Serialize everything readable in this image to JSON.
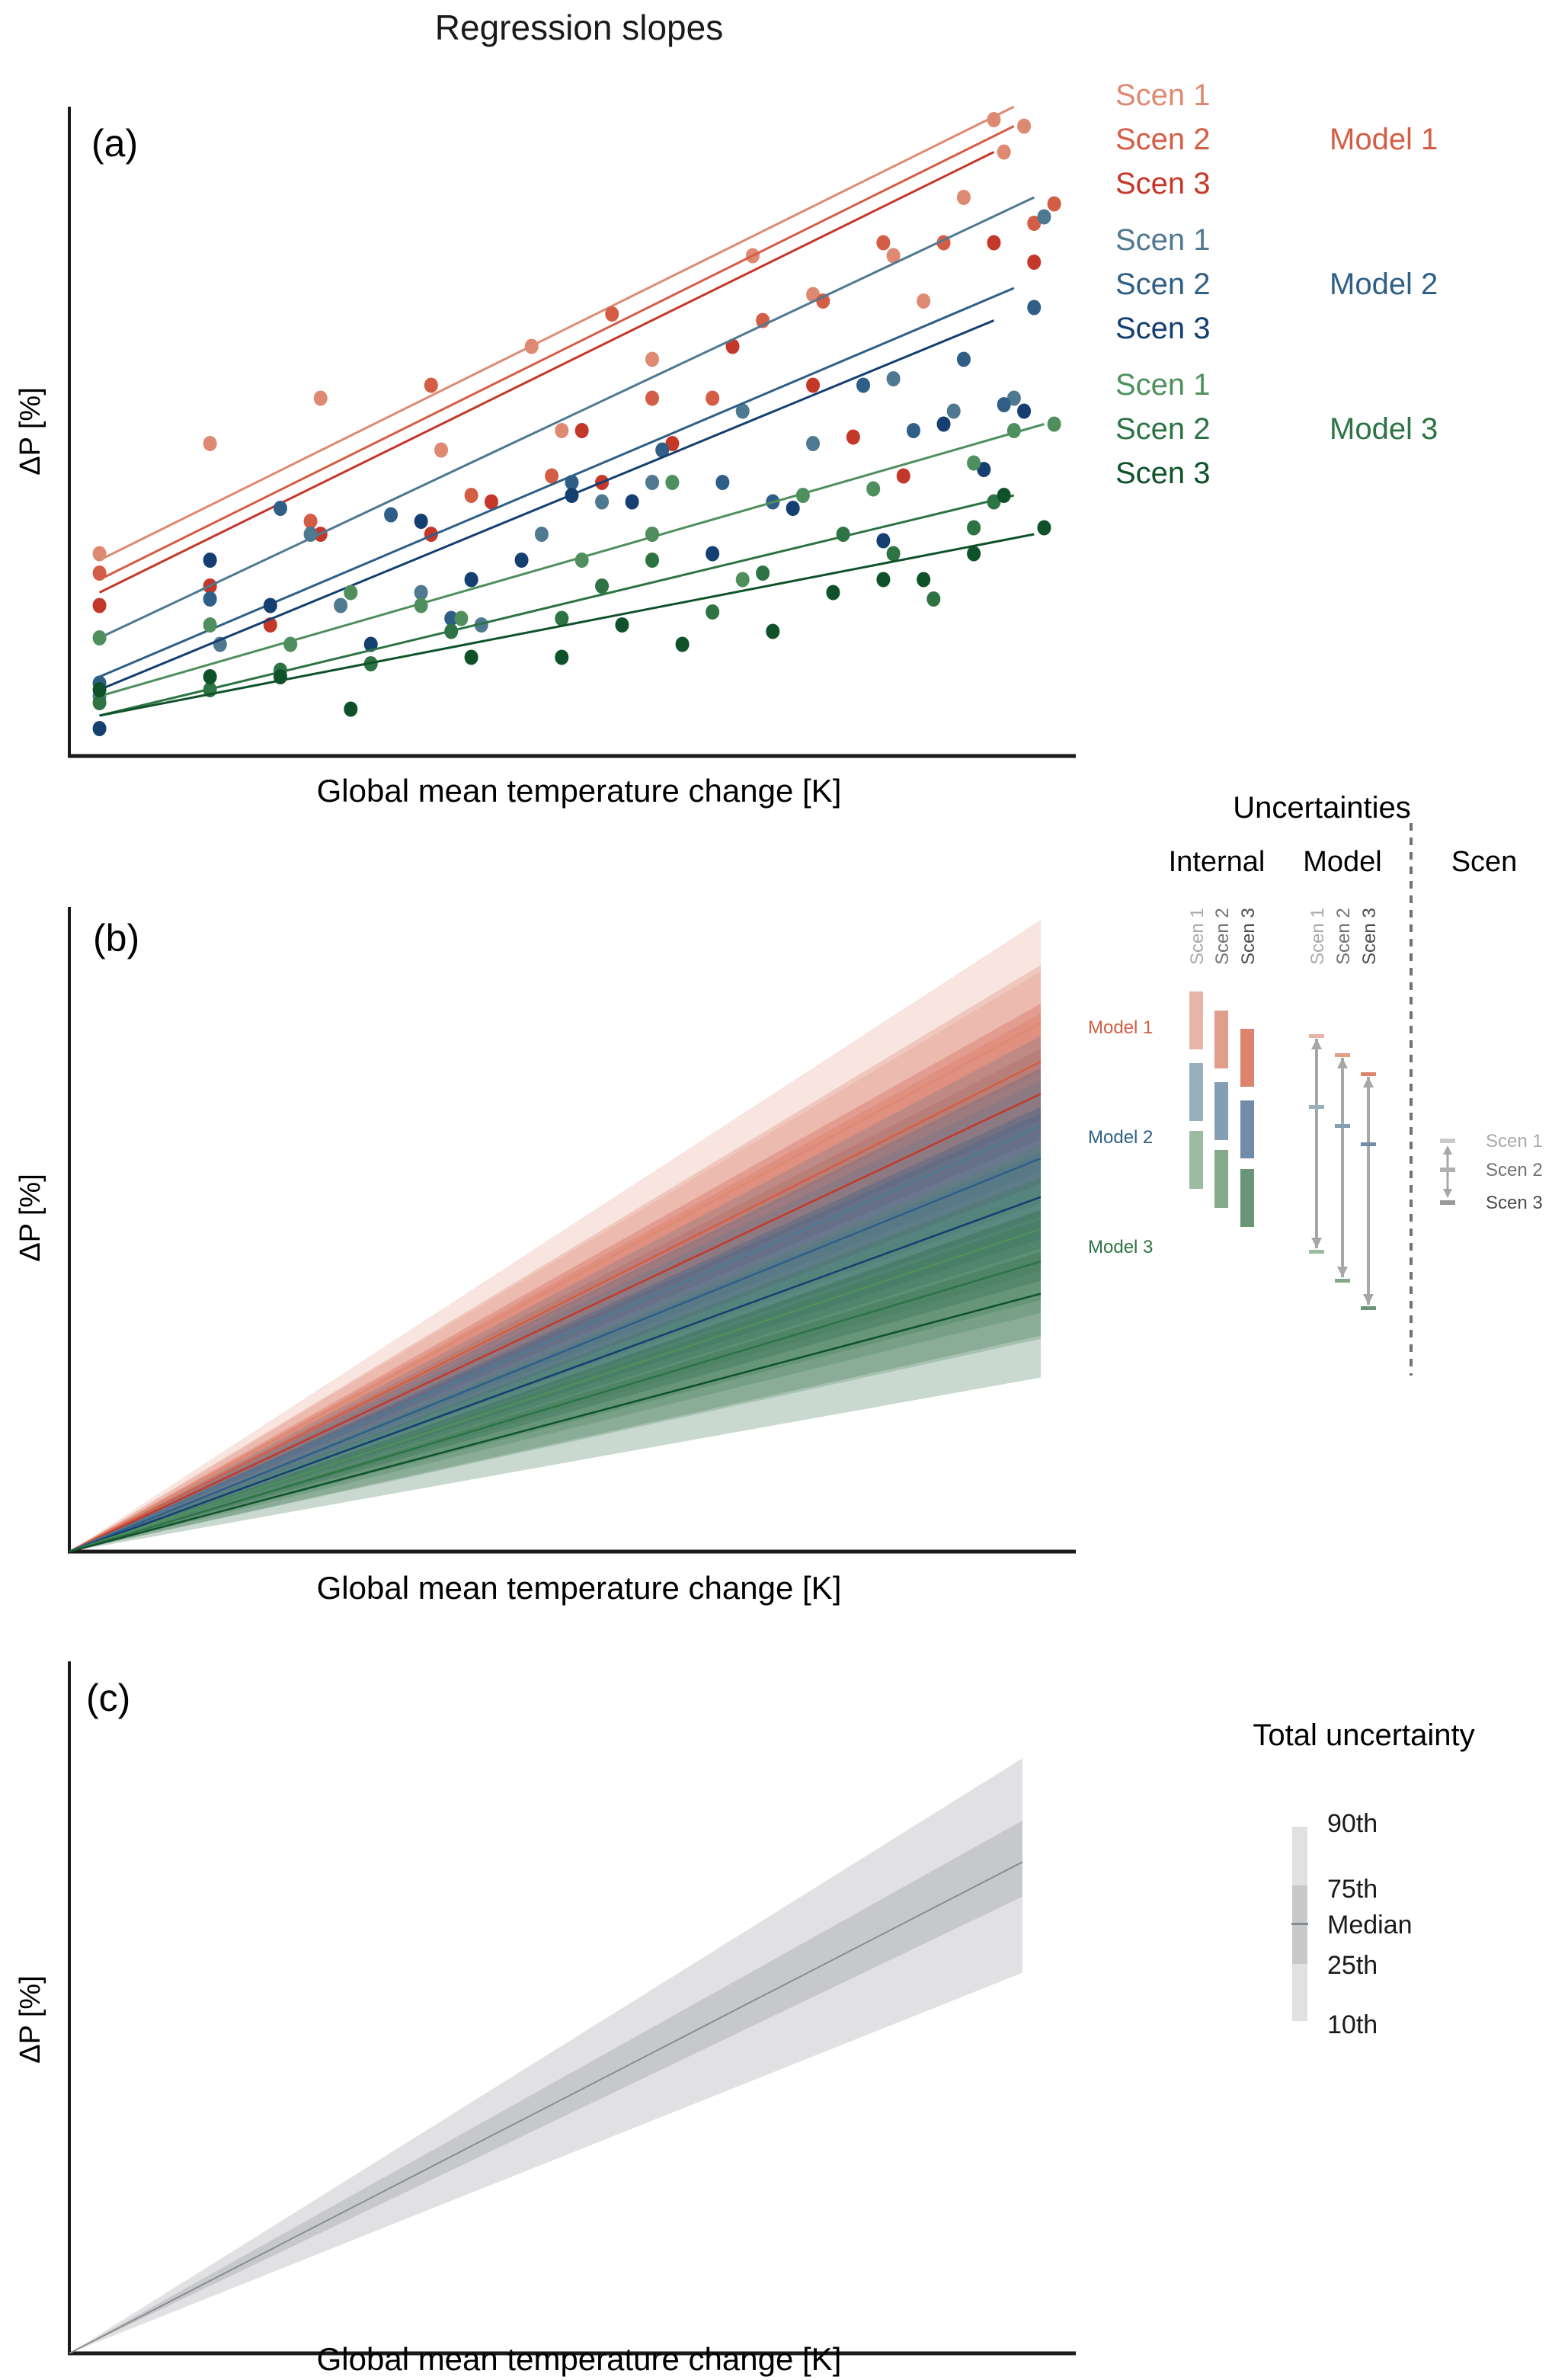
{
  "figure_title": "Regression slopes",
  "colors": {
    "m1s1": "#de8a73",
    "m1s2": "#d45e45",
    "m1s3": "#c4382a",
    "m2s1": "#4f7891",
    "m2s2": "#2f5f86",
    "m2s3": "#143f70",
    "m3s1": "#4f8f5e",
    "m3s2": "#2d7344",
    "m3s3": "#0f522a",
    "axis": "#1a1a1a",
    "grey_arrow": "#a6a7a9",
    "total_outer": "#e1e1e3",
    "total_inner": "#c7c8ca",
    "total_median": "#8a8d8f"
  },
  "chart_data": [
    {
      "id": "a",
      "type": "scatter",
      "panel_label": "(a)",
      "title": "Regression slopes",
      "xlabel": "Global  mean temperature change [K]",
      "ylabel": "ΔP [%]",
      "xlim": [
        0,
        1
      ],
      "ylim": [
        0,
        1
      ],
      "units_note": "axes have no tick labels; values are normalized 0-1",
      "grid": false,
      "legend": {
        "placement": "right",
        "groups": [
          {
            "model": "Model 1",
            "scenarios": [
              "Scen 1",
              "Scen 2",
              "Scen 3"
            ],
            "colors": [
              "m1s1",
              "m1s2",
              "m1s3"
            ],
            "model_color": "m1s2"
          },
          {
            "model": "Model 2",
            "scenarios": [
              "Scen 1",
              "Scen 2",
              "Scen 3"
            ],
            "colors": [
              "m2s1",
              "m2s2",
              "m2s3"
            ],
            "model_color": "m2s2"
          },
          {
            "model": "Model 3",
            "scenarios": [
              "Scen 1",
              "Scen 2",
              "Scen 3"
            ],
            "colors": [
              "m3s1",
              "m3s2",
              "m3s3"
            ],
            "model_color": "m3s2"
          }
        ]
      },
      "series": [
        {
          "name": "Model 1 Scen 1",
          "color": "m1s1",
          "line": [
            [
              0.03,
              0.3
            ],
            [
              0.94,
              1.0
            ]
          ],
          "points": [
            [
              0.03,
              0.31
            ],
            [
              0.14,
              0.48
            ],
            [
              0.25,
              0.55
            ],
            [
              0.37,
              0.47
            ],
            [
              0.46,
              0.63
            ],
            [
              0.49,
              0.5
            ],
            [
              0.58,
              0.61
            ],
            [
              0.68,
              0.77
            ],
            [
              0.74,
              0.71
            ],
            [
              0.82,
              0.77
            ],
            [
              0.85,
              0.7
            ],
            [
              0.93,
              0.93
            ],
            [
              0.95,
              0.97
            ],
            [
              0.92,
              0.98
            ],
            [
              0.89,
              0.86
            ]
          ]
        },
        {
          "name": "Model 1 Scen 2",
          "color": "m1s2",
          "line": [
            [
              0.03,
              0.27
            ],
            [
              0.94,
              0.97
            ]
          ],
          "points": [
            [
              0.03,
              0.28
            ],
            [
              0.14,
              0.26
            ],
            [
              0.24,
              0.36
            ],
            [
              0.36,
              0.57
            ],
            [
              0.4,
              0.4
            ],
            [
              0.48,
              0.43
            ],
            [
              0.58,
              0.55
            ],
            [
              0.64,
              0.55
            ],
            [
              0.69,
              0.67
            ],
            [
              0.75,
              0.7
            ],
            [
              0.81,
              0.79
            ],
            [
              0.87,
              0.79
            ],
            [
              0.96,
              0.82
            ],
            [
              0.98,
              0.85
            ],
            [
              0.54,
              0.68
            ]
          ]
        },
        {
          "name": "Model 1 Scen 3",
          "color": "m1s3",
          "line": [
            [
              0.03,
              0.25
            ],
            [
              0.92,
              0.93
            ]
          ],
          "points": [
            [
              0.03,
              0.23
            ],
            [
              0.14,
              0.26
            ],
            [
              0.2,
              0.2
            ],
            [
              0.25,
              0.34
            ],
            [
              0.36,
              0.34
            ],
            [
              0.42,
              0.39
            ],
            [
              0.51,
              0.5
            ],
            [
              0.53,
              0.42
            ],
            [
              0.6,
              0.48
            ],
            [
              0.66,
              0.63
            ],
            [
              0.74,
              0.57
            ],
            [
              0.78,
              0.49
            ],
            [
              0.83,
              0.43
            ],
            [
              0.92,
              0.79
            ],
            [
              0.96,
              0.76
            ]
          ]
        },
        {
          "name": "Model 2 Scen 1",
          "color": "m2s1",
          "line": [
            [
              0.03,
              0.18
            ],
            [
              0.96,
              0.86
            ]
          ],
          "points": [
            [
              0.03,
              0.09
            ],
            [
              0.15,
              0.17
            ],
            [
              0.24,
              0.34
            ],
            [
              0.27,
              0.23
            ],
            [
              0.35,
              0.25
            ],
            [
              0.41,
              0.2
            ],
            [
              0.47,
              0.34
            ],
            [
              0.53,
              0.39
            ],
            [
              0.58,
              0.42
            ],
            [
              0.67,
              0.53
            ],
            [
              0.74,
              0.48
            ],
            [
              0.82,
              0.58
            ],
            [
              0.88,
              0.53
            ],
            [
              0.94,
              0.55
            ],
            [
              0.97,
              0.83
            ]
          ]
        },
        {
          "name": "Model 2 Scen 2",
          "color": "m2s2",
          "line": [
            [
              0.03,
              0.12
            ],
            [
              0.94,
              0.72
            ]
          ],
          "points": [
            [
              0.03,
              0.11
            ],
            [
              0.14,
              0.24
            ],
            [
              0.21,
              0.38
            ],
            [
              0.32,
              0.37
            ],
            [
              0.38,
              0.21
            ],
            [
              0.5,
              0.42
            ],
            [
              0.59,
              0.47
            ],
            [
              0.65,
              0.42
            ],
            [
              0.7,
              0.39
            ],
            [
              0.79,
              0.57
            ],
            [
              0.84,
              0.5
            ],
            [
              0.89,
              0.61
            ],
            [
              0.93,
              0.54
            ],
            [
              0.96,
              0.69
            ],
            [
              0.58,
              0.34
            ]
          ]
        },
        {
          "name": "Model 2 Scen 3",
          "color": "m2s3",
          "line": [
            [
              0.03,
              0.1
            ],
            [
              0.92,
              0.67
            ]
          ],
          "points": [
            [
              0.03,
              0.04
            ],
            [
              0.14,
              0.3
            ],
            [
              0.2,
              0.23
            ],
            [
              0.3,
              0.17
            ],
            [
              0.35,
              0.36
            ],
            [
              0.4,
              0.27
            ],
            [
              0.45,
              0.3
            ],
            [
              0.5,
              0.4
            ],
            [
              0.56,
              0.39
            ],
            [
              0.64,
              0.31
            ],
            [
              0.72,
              0.38
            ],
            [
              0.81,
              0.33
            ],
            [
              0.87,
              0.51
            ],
            [
              0.91,
              0.44
            ],
            [
              0.95,
              0.53
            ]
          ]
        },
        {
          "name": "Model 3 Scen 1",
          "color": "m3s1",
          "line": [
            [
              0.03,
              0.09
            ],
            [
              0.97,
              0.51
            ]
          ],
          "points": [
            [
              0.03,
              0.18
            ],
            [
              0.14,
              0.2
            ],
            [
              0.22,
              0.17
            ],
            [
              0.28,
              0.25
            ],
            [
              0.35,
              0.23
            ],
            [
              0.39,
              0.21
            ],
            [
              0.51,
              0.3
            ],
            [
              0.58,
              0.34
            ],
            [
              0.67,
              0.27
            ],
            [
              0.73,
              0.4
            ],
            [
              0.8,
              0.41
            ],
            [
              0.9,
              0.45
            ],
            [
              0.94,
              0.5
            ],
            [
              0.98,
              0.51
            ],
            [
              0.6,
              0.42
            ]
          ]
        },
        {
          "name": "Model 3 Scen 2",
          "color": "m3s2",
          "line": [
            [
              0.03,
              0.06
            ],
            [
              0.94,
              0.4
            ]
          ],
          "points": [
            [
              0.03,
              0.08
            ],
            [
              0.14,
              0.1
            ],
            [
              0.21,
              0.13
            ],
            [
              0.3,
              0.14
            ],
            [
              0.38,
              0.19
            ],
            [
              0.49,
              0.21
            ],
            [
              0.53,
              0.26
            ],
            [
              0.58,
              0.3
            ],
            [
              0.64,
              0.22
            ],
            [
              0.69,
              0.28
            ],
            [
              0.77,
              0.34
            ],
            [
              0.82,
              0.31
            ],
            [
              0.86,
              0.24
            ],
            [
              0.9,
              0.35
            ],
            [
              0.92,
              0.39
            ]
          ]
        },
        {
          "name": "Model 3 Scen 3",
          "color": "m3s3",
          "line": [
            [
              0.03,
              0.06
            ],
            [
              0.96,
              0.34
            ]
          ],
          "points": [
            [
              0.03,
              0.1
            ],
            [
              0.14,
              0.12
            ],
            [
              0.21,
              0.12
            ],
            [
              0.28,
              0.07
            ],
            [
              0.4,
              0.15
            ],
            [
              0.49,
              0.15
            ],
            [
              0.55,
              0.2
            ],
            [
              0.61,
              0.17
            ],
            [
              0.7,
              0.19
            ],
            [
              0.76,
              0.25
            ],
            [
              0.81,
              0.27
            ],
            [
              0.85,
              0.27
            ],
            [
              0.9,
              0.31
            ],
            [
              0.93,
              0.4
            ],
            [
              0.97,
              0.35
            ]
          ]
        }
      ]
    },
    {
      "id": "b",
      "type": "area",
      "panel_label": "(b)",
      "xlabel": "Global  mean temperature change [K]",
      "ylabel": "ΔP [%]",
      "xlim": [
        0,
        1
      ],
      "ylim": [
        0,
        1
      ],
      "units_note": "axes have no tick labels; values are normalized 0-1; lines and bands start at origin",
      "grid": false,
      "series": [
        {
          "name": "Model 1 Scen 1",
          "color": "m1s1",
          "slope": 0.82,
          "band": [
            0.67,
            0.98
          ]
        },
        {
          "name": "Model 1 Scen 2",
          "color": "m1s2",
          "slope": 0.76,
          "band": [
            0.62,
            0.91
          ]
        },
        {
          "name": "Model 1 Scen 3",
          "color": "m1s3",
          "slope": 0.71,
          "band": [
            0.57,
            0.85
          ]
        },
        {
          "name": "Model 2 Scen 1",
          "color": "m2s1",
          "slope": 0.66,
          "band": [
            0.52,
            0.8
          ]
        },
        {
          "name": "Model 2 Scen 2",
          "color": "m2s2",
          "slope": 0.61,
          "band": [
            0.47,
            0.75
          ]
        },
        {
          "name": "Model 2 Scen 3",
          "color": "m2s3",
          "slope": 0.55,
          "band": [
            0.42,
            0.69
          ]
        },
        {
          "name": "Model 3 Scen 1",
          "color": "m3s1",
          "slope": 0.5,
          "band": [
            0.37,
            0.63
          ]
        },
        {
          "name": "Model 3 Scen 2",
          "color": "m3s2",
          "slope": 0.45,
          "band": [
            0.33,
            0.58
          ]
        },
        {
          "name": "Model 3 Scen 3",
          "color": "m3s3",
          "slope": 0.4,
          "band": [
            0.27,
            0.53
          ]
        }
      ]
    },
    {
      "id": "c",
      "type": "area",
      "panel_label": "(c)",
      "xlabel": "Global  mean temperature change [K]",
      "ylabel": "ΔP [%]",
      "xlim": [
        0,
        1
      ],
      "ylim": [
        0,
        1
      ],
      "units_note": "axes have no tick labels; values are normalized 0-1 at right end",
      "grid": false,
      "legend_title": "Total uncertainty",
      "percentiles": {
        "p10": 0.55,
        "p25": 0.66,
        "median": 0.71,
        "p75": 0.77,
        "p90": 0.86
      },
      "legend_labels": [
        "90th",
        "75th",
        "Median",
        "25th",
        "10th"
      ]
    }
  ],
  "uncertainties": {
    "title": "Uncertainties",
    "columns": [
      "Internal",
      "Model",
      "Scen"
    ],
    "scenario_labels": [
      "Scen 1",
      "Scen 2",
      "Scen 3"
    ],
    "model_labels": [
      "Model 1",
      "Model 2",
      "Model 3"
    ],
    "model_label_colors": [
      "#d45e45",
      "#2f5f86",
      "#2d7344"
    ],
    "internal_bar_colors": [
      [
        "#e8b4a6",
        "#e29e8c",
        "#dc846d"
      ],
      [
        "#98b0bd",
        "#849fb4",
        "#718ca8"
      ],
      [
        "#9cbba1",
        "#84aa89",
        "#6a9578"
      ]
    ],
    "scen_legend": [
      "Scen 1",
      "Scen 2",
      "Scen 3"
    ],
    "scen_legend_colors": [
      "#a8a9ab",
      "#707274",
      "#4a4c4e"
    ]
  }
}
